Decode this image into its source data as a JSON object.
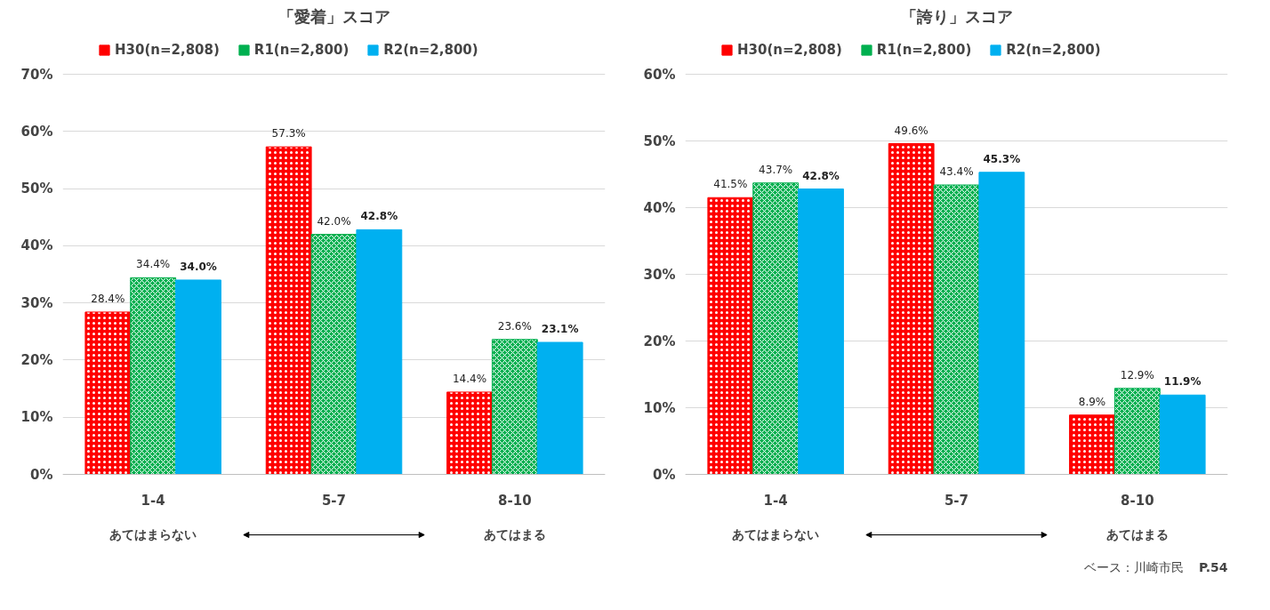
{
  "chart_data": [
    {
      "type": "bar",
      "title": "「愛着」スコア",
      "categories": [
        "1-4",
        "5-7",
        "8-10"
      ],
      "series": [
        {
          "name": "H30(n=2,808)",
          "color": "#ff0000",
          "values": [
            28.4,
            57.3,
            14.4
          ],
          "value_labels": [
            "28.4%",
            "57.3%",
            "14.4%"
          ]
        },
        {
          "name": "R1(n=2,800)",
          "color": "#00b050",
          "values": [
            34.4,
            42.0,
            23.6
          ],
          "value_labels": [
            "34.4%",
            "42.0%",
            "23.6%"
          ]
        },
        {
          "name": "R2(n=2,800)",
          "color": "#00b0f0",
          "values": [
            34.0,
            42.8,
            23.1
          ],
          "value_labels": [
            "34.0%",
            "42.8%",
            "23.1%"
          ]
        }
      ],
      "ylim": [
        0,
        70
      ],
      "yticks": [
        {
          "value": 0,
          "label": "0%"
        },
        {
          "value": 10,
          "label": "10%"
        },
        {
          "value": 20,
          "label": "20%"
        },
        {
          "value": 30,
          "label": "30%"
        },
        {
          "value": 40,
          "label": "40%"
        },
        {
          "value": 50,
          "label": "50%"
        },
        {
          "value": 60,
          "label": "60%"
        },
        {
          "value": 70,
          "label": "70%"
        }
      ],
      "grid": "y",
      "legend": "top",
      "annotations": [
        "あてはまらない",
        "あてはまる"
      ]
    },
    {
      "type": "bar",
      "title": "「誇り」スコア",
      "categories": [
        "1-4",
        "5-7",
        "8-10"
      ],
      "series": [
        {
          "name": "H30(n=2,808)",
          "color": "#ff0000",
          "values": [
            41.5,
            49.6,
            8.9
          ],
          "value_labels": [
            "41.5%",
            "49.6%",
            "8.9%"
          ]
        },
        {
          "name": "R1(n=2,800)",
          "color": "#00b050",
          "values": [
            43.7,
            43.4,
            12.9
          ],
          "value_labels": [
            "43.7%",
            "43.4%",
            "12.9%"
          ]
        },
        {
          "name": "R2(n=2,800)",
          "color": "#00b0f0",
          "values": [
            42.8,
            45.3,
            11.9
          ],
          "value_labels": [
            "42.8%",
            "45.3%",
            "11.9%"
          ]
        }
      ],
      "ylim": [
        0,
        60
      ],
      "yticks": [
        {
          "value": 0,
          "label": "0%"
        },
        {
          "value": 10,
          "label": "10%"
        },
        {
          "value": 20,
          "label": "20%"
        },
        {
          "value": 30,
          "label": "30%"
        },
        {
          "value": 40,
          "label": "40%"
        },
        {
          "value": 50,
          "label": "50%"
        },
        {
          "value": 60,
          "label": "60%"
        }
      ],
      "grid": "y",
      "legend": "top",
      "annotations": [
        "あてはまらない",
        "あてはまる",
        "ベース：川崎市民",
        "P.54"
      ]
    }
  ]
}
